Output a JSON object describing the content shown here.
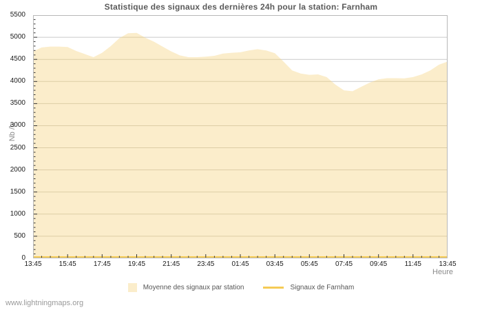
{
  "title": "Statistique des signaux des dernières 24h pour la station: Farnham",
  "watermark": "www.lightningmaps.org",
  "colors": {
    "title": "#5a5a5a",
    "grid": "#c9c9c9",
    "grid_over_area": "#dccda5",
    "plot_border": "#b8b8b8",
    "tick": "#333333",
    "tick_label": "#1a1a1a",
    "axis_title": "#8a8a8a",
    "legend_text": "#555555",
    "watermark": "#9a9a9a",
    "background": "#ffffff"
  },
  "chart_data": {
    "type": "area",
    "title": "Statistique des signaux des dernières 24h pour la station: Farnham",
    "xlabel": "Heure",
    "ylabel": "Nb /h",
    "ylim": [
      0,
      5500
    ],
    "y_tick_step": 500,
    "y_minor_step": 100,
    "x_tick_labels": [
      "13:45",
      "15:45",
      "17:45",
      "19:45",
      "21:45",
      "23:45",
      "01:45",
      "03:45",
      "05:45",
      "07:45",
      "09:45",
      "11:45",
      "13:45"
    ],
    "x_minor_intervals": 48,
    "x_major_every": 4,
    "grid": true,
    "legend_position": "bottom",
    "series": [
      {
        "name": "Moyenne des signaux par station",
        "type": "area",
        "color": "#fbedcb",
        "interval_minutes": 30,
        "start_time": "13:45",
        "values": [
          4680,
          4770,
          4790,
          4790,
          4780,
          4690,
          4620,
          4550,
          4650,
          4800,
          4980,
          5090,
          5100,
          4990,
          4900,
          4790,
          4680,
          4590,
          4550,
          4550,
          4560,
          4580,
          4630,
          4650,
          4660,
          4700,
          4730,
          4700,
          4640,
          4450,
          4250,
          4180,
          4150,
          4160,
          4100,
          3930,
          3800,
          3780,
          3880,
          3975,
          4050,
          4075,
          4075,
          4070,
          4100,
          4160,
          4250,
          4380,
          4450
        ]
      },
      {
        "name": "Signaux de Farnham",
        "type": "line",
        "color": "#f5cb55",
        "values": [
          0,
          0
        ]
      }
    ]
  }
}
